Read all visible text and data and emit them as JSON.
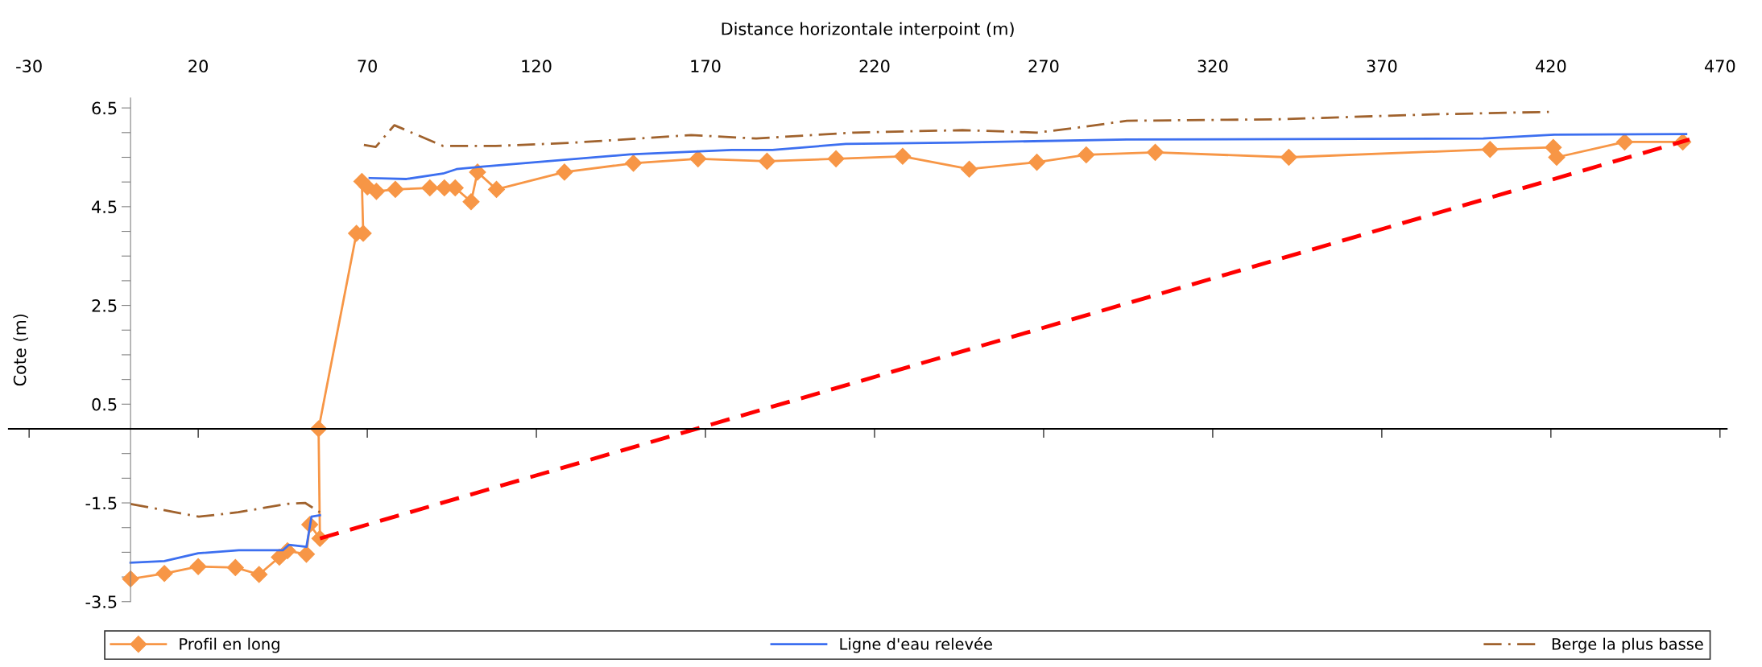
{
  "chart_data": {
    "type": "line",
    "xlabel": "Distance horizontale interpoint (m)",
    "ylabel": "Cote (m)",
    "xlim": [
      -36,
      472
    ],
    "xticks": [
      -30,
      20,
      70,
      120,
      170,
      220,
      270,
      320,
      370,
      420,
      470
    ],
    "ylim": [
      -3.5,
      6.7
    ],
    "yticks": [
      -3.5,
      {
        "value": -3,
        "label": null
      },
      {
        "value": -2.5,
        "label": null
      },
      {
        "value": -2,
        "label": null
      },
      -1.5,
      {
        "value": -1,
        "label": null
      },
      {
        "value": -0.5,
        "label": null
      },
      0.5,
      {
        "value": 1,
        "label": null
      },
      {
        "value": 1.5,
        "label": null
      },
      {
        "value": 2,
        "label": null
      },
      2.5,
      {
        "value": 3,
        "label": null
      },
      {
        "value": 3.5,
        "label": null
      },
      {
        "value": 4,
        "label": null
      },
      4.5,
      {
        "value": 5,
        "label": null
      },
      {
        "value": 5.5,
        "label": null
      },
      {
        "value": 6,
        "label": null
      },
      6.5
    ],
    "grid": false,
    "legend": "bottom",
    "series": [
      {
        "name": "Profil en long",
        "color": "#f79646",
        "marker": "diamond",
        "line_style": "solid",
        "x": [
          0,
          10,
          20,
          31,
          38,
          44,
          46.4,
          52,
          53,
          56,
          55.6,
          66.8,
          68.8,
          68.4,
          70,
          72.7,
          78.3,
          88.5,
          92.8,
          96,
          100.7,
          102.6,
          108.2,
          128.3,
          148.7,
          167.8,
          188.2,
          208.6,
          228.3,
          248,
          268,
          282.6,
          303,
          342.5,
          402,
          420.7,
          421.7,
          441.8,
          459
        ],
        "values": [
          -3.04,
          -2.93,
          -2.79,
          -2.81,
          -2.95,
          -2.6,
          -2.47,
          -2.54,
          -1.94,
          -2.22,
          0.0,
          3.96,
          3.96,
          5.01,
          4.9,
          4.81,
          4.85,
          4.88,
          4.88,
          4.88,
          4.6,
          5.2,
          4.85,
          5.2,
          5.38,
          5.47,
          5.42,
          5.47,
          5.52,
          5.26,
          5.4,
          5.55,
          5.6,
          5.5,
          5.66,
          5.7,
          5.5,
          5.81,
          5.81
        ]
      },
      {
        "name": "Ligne d'eau relevée",
        "color": "#3c6ff0",
        "marker": "none",
        "line_style": "solid",
        "x": [
          0,
          10,
          20,
          32,
          45,
          46.8,
          52,
          53.5,
          56,
          62,
          70.7,
          81.6,
          92.4,
          96.4,
          104,
          147.7,
          177.8,
          189.8,
          211.5,
          246,
          294.6,
          400,
          421,
          460
        ],
        "values": [
          -2.71,
          -2.68,
          -2.52,
          -2.46,
          -2.46,
          -2.35,
          -2.39,
          -1.78,
          -1.75,
          null,
          5.08,
          5.06,
          5.17,
          5.26,
          5.31,
          5.56,
          5.65,
          5.65,
          5.77,
          5.8,
          5.86,
          5.88,
          5.96,
          5.97
        ]
      },
      {
        "name": "Berge la plus basse",
        "color": "#a0622d",
        "marker": "none",
        "line_style": "dashdot",
        "x": [
          0,
          20.2,
          31.8,
          46.4,
          51.6,
          56,
          62,
          69,
          72.5,
          78,
          92.4,
          108,
          129.6,
          165.8,
          185,
          213.8,
          246,
          268,
          280,
          294.6,
          339.6,
          385,
          419.4
        ],
        "values": [
          -1.52,
          -1.78,
          -1.69,
          -1.52,
          -1.5,
          -1.69,
          null,
          5.75,
          5.71,
          6.15,
          5.73,
          5.73,
          5.79,
          5.95,
          5.88,
          6.0,
          6.05,
          6.0,
          6.1,
          6.24,
          6.27,
          6.37,
          6.42
        ]
      },
      {
        "color": "#ff0000",
        "marker": "none",
        "line_style": "dashed",
        "x": [
          56,
          461
        ],
        "values": [
          -2.22,
          5.86
        ]
      }
    ]
  }
}
